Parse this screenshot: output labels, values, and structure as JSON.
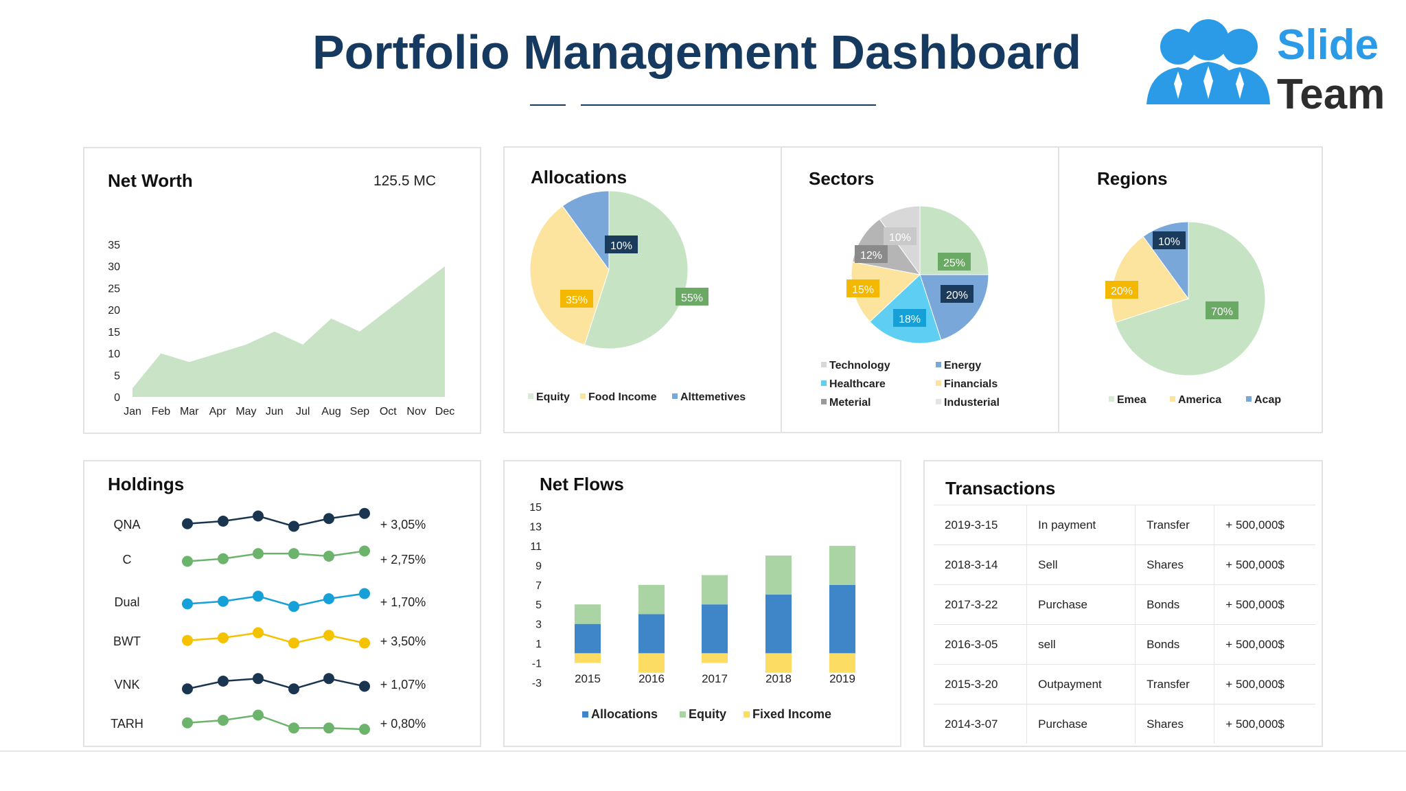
{
  "header": {
    "title": "Portfolio Management Dashboard",
    "logo_line1": "Slide",
    "logo_line2": "Team"
  },
  "colors": {
    "navy": "#163a5f",
    "area_green": "#c8e3c5",
    "pie_green": "#c6e3c3",
    "pie_yellow": "#fde49e",
    "pie_blue": "#7aa7da",
    "label_green": "#6aaa64",
    "label_yellow": "#f5b800",
    "label_navy": "#1b3b5c",
    "sector_gray1": "#d8d8d8",
    "sector_gray2": "#b5b5b5",
    "sector_cyan": "#5ecff2",
    "bar_blue": "#3f86c9",
    "bar_green": "#abd4a4",
    "bar_yellow": "#fcdc63",
    "hold_navy": "#1a3550",
    "hold_green": "#6cb36c",
    "hold_cyan": "#16a0d8",
    "hold_yellow": "#f5c200"
  },
  "net_worth": {
    "title": "Net Worth",
    "value": "125.5 MC"
  },
  "allocations": {
    "title": "Allocations"
  },
  "sectors": {
    "title": "Sectors"
  },
  "regions": {
    "title": "Regions"
  },
  "holdings": {
    "title": "Holdings"
  },
  "net_flows": {
    "title": "Net Flows"
  },
  "transactions": {
    "title": "Transactions",
    "rows": [
      [
        "2019-3-15",
        "In payment",
        "Transfer",
        "+ 500,000$"
      ],
      [
        "2018-3-14",
        "Sell",
        "Shares",
        "+ 500,000$"
      ],
      [
        "2017-3-22",
        "Purchase",
        "Bonds",
        "+ 500,000$"
      ],
      [
        "2016-3-05",
        "sell",
        "Bonds",
        "+ 500,000$"
      ],
      [
        "2015-3-20",
        "Outpayment",
        "Transfer",
        "+ 500,000$"
      ],
      [
        "2014-3-07",
        "Purchase",
        "Shares",
        "+ 500,000$"
      ]
    ]
  },
  "chart_data": [
    {
      "id": "net_worth",
      "type": "area",
      "title": "Net Worth",
      "categories": [
        "Jan",
        "Feb",
        "Mar",
        "Apr",
        "May",
        "Jun",
        "Jul",
        "Aug",
        "Sep",
        "Oct",
        "Nov",
        "Dec"
      ],
      "values": [
        2,
        10,
        8,
        10,
        12,
        15,
        12,
        18,
        15,
        20,
        25,
        30
      ],
      "yticks": [
        "0",
        "5",
        "10",
        "15",
        "20",
        "25",
        "30",
        "35"
      ],
      "ylim": [
        0,
        35
      ],
      "grid": false
    },
    {
      "id": "allocations",
      "type": "pie",
      "title": "Allocations",
      "slices": [
        {
          "name": "Equity",
          "value": 55,
          "label": "55%",
          "color": "#c6e3c3",
          "label_color": "#6aaa64"
        },
        {
          "name": "Food Income",
          "value": 35,
          "label": "35%",
          "color": "#fde49e",
          "label_color": "#f5b800"
        },
        {
          "name": "Alttemetives",
          "value": 10,
          "label": "10%",
          "color": "#7aa7da",
          "label_color": "#1b3b5c"
        }
      ],
      "legend_position": "bottom"
    },
    {
      "id": "sectors",
      "type": "pie",
      "title": "Sectors",
      "slices": [
        {
          "name": "Industerial",
          "value": 25,
          "label": "25%",
          "color": "#c6e3c3",
          "label_color": "#6aaa64"
        },
        {
          "name": "Energy",
          "value": 20,
          "label": "20%",
          "color": "#7aa7da",
          "label_color": "#1b3b5c"
        },
        {
          "name": "Healthcare",
          "value": 18,
          "label": "18%",
          "color": "#5ecff2",
          "label_color": "#16a0d8"
        },
        {
          "name": "Financials",
          "value": 15,
          "label": "15%",
          "color": "#fde49e",
          "label_color": "#f5b800"
        },
        {
          "name": "Meterial",
          "value": 12,
          "label": "12%",
          "color": "#b5b5b5",
          "label_color": "#8a8a8a"
        },
        {
          "name": "Technology",
          "value": 10,
          "label": "10%",
          "color": "#d8d8d8",
          "label_color": "#c9c9c9"
        }
      ],
      "legend": [
        {
          "name": "Technology",
          "color": "#d8d8d8"
        },
        {
          "name": "Energy",
          "color": "#7aa7da"
        },
        {
          "name": "Healthcare",
          "color": "#5ecff2"
        },
        {
          "name": "Financials",
          "color": "#fde49e"
        },
        {
          "name": "Meterial",
          "color": "#9a9a9a"
        },
        {
          "name": "Industerial",
          "color": "#e3e3e3"
        }
      ],
      "legend_position": "bottom"
    },
    {
      "id": "regions",
      "type": "pie",
      "title": "Regions",
      "slices": [
        {
          "name": "Emea",
          "value": 70,
          "label": "70%",
          "color": "#c6e3c3",
          "label_color": "#6aaa64"
        },
        {
          "name": "America",
          "value": 20,
          "label": "20%",
          "color": "#fde49e",
          "label_color": "#f5b800"
        },
        {
          "name": "Acap",
          "value": 10,
          "label": "10%",
          "color": "#7aa7da",
          "label_color": "#1b3b5c"
        }
      ],
      "legend_position": "bottom"
    },
    {
      "id": "holdings",
      "type": "line",
      "title": "Holdings",
      "x": [
        1,
        2,
        3,
        4,
        5,
        6
      ],
      "series": [
        {
          "name": "QNA",
          "change": "+ 3,05%",
          "color": "#1a3550",
          "values": [
            3,
            4,
            6,
            2,
            5,
            7
          ]
        },
        {
          "name": "C",
          "change": "+ 2,75%",
          "color": "#6cb36c",
          "values": [
            2,
            3,
            5,
            5,
            4,
            6
          ]
        },
        {
          "name": "Dual",
          "change": "+ 1,70%",
          "color": "#16a0d8",
          "values": [
            2,
            3,
            5,
            1,
            4,
            6
          ]
        },
        {
          "name": "BWT",
          "change": "+ 3,50%",
          "color": "#f5c200",
          "values": [
            3,
            4,
            6,
            2,
            5,
            2
          ]
        },
        {
          "name": "VNK",
          "change": "+ 1,07%",
          "color": "#1a3550",
          "values": [
            1,
            4,
            5,
            1,
            5,
            2
          ]
        },
        {
          "name": "TARH",
          "change": "+ 0,80%",
          "color": "#6cb36c",
          "values": [
            3,
            4,
            6,
            1,
            1,
            0.5
          ]
        }
      ]
    },
    {
      "id": "net_flows",
      "type": "bar",
      "stacked": true,
      "title": "Net Flows",
      "categories": [
        "2015",
        "2016",
        "2017",
        "2018",
        "2019"
      ],
      "series": [
        {
          "name": "Allocations",
          "color": "#3f86c9",
          "values": [
            3,
            4,
            5,
            6,
            7
          ]
        },
        {
          "name": "Equity",
          "color": "#abd4a4",
          "values": [
            2,
            3,
            3,
            4,
            4
          ]
        },
        {
          "name": "Fixed Income",
          "color": "#fcdc63",
          "values": [
            -1,
            -2,
            -1,
            -2,
            -2
          ]
        }
      ],
      "yticks": [
        "15",
        "13",
        "11",
        "9",
        "7",
        "5",
        "3",
        "1",
        "-1",
        "-3"
      ],
      "ylim": [
        -3,
        15
      ],
      "legend_position": "bottom"
    }
  ]
}
